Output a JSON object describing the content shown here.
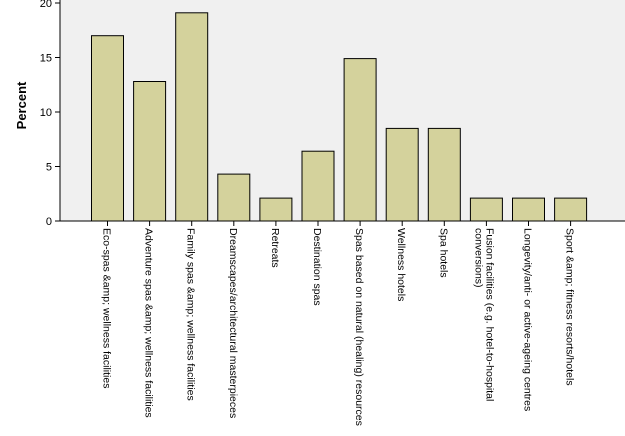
{
  "chart_data": {
    "type": "bar",
    "ylabel": "Percent",
    "xlabel": "",
    "ylim": [
      0,
      20
    ],
    "yticks": [
      0,
      5,
      10,
      15,
      20
    ],
    "grid": false,
    "colors": {
      "bar": "#d4d29c",
      "plot_bg": "#f0f0f0",
      "stroke": "#000000"
    },
    "categories": [
      "Eco-spas &amp; wellness facilities",
      "Adventure spas &amp; wellness facilities",
      "Family spas &amp; wellness facilities",
      "Dreamscapes/architectural masterpieces",
      "Retreats",
      "Destination spas",
      "Spas based on natural (healing) resources",
      "Wellness hotels",
      "Spa hotels",
      "Fusion facilities (e.g. hotel-to-hospital conversions)",
      "Longevity/anti- or active-ageing centres",
      "Sport &amp; fitness resorts/hotels"
    ],
    "values": [
      17.0,
      12.8,
      19.1,
      4.3,
      2.1,
      6.4,
      14.9,
      8.5,
      8.5,
      2.1,
      2.1,
      2.1
    ]
  }
}
